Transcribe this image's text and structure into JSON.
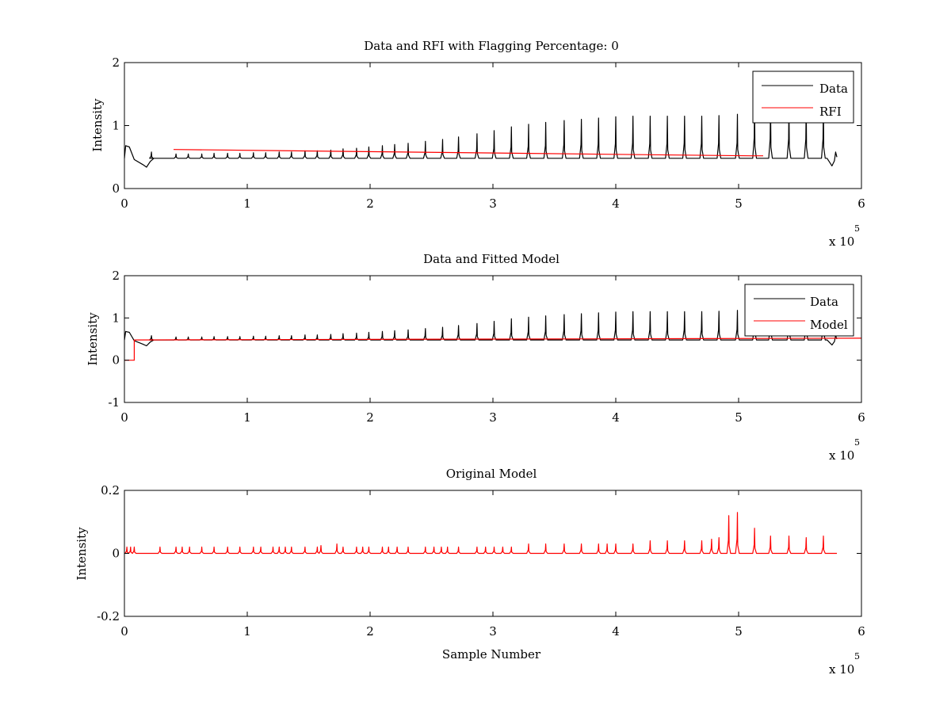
{
  "chart_data": [
    {
      "type": "line",
      "title": "Data and RFI with Flagging Percentage: 0",
      "xlabel": "",
      "ylabel": "Intensity",
      "xlim": [
        0,
        600000
      ],
      "ylim": [
        0,
        2
      ],
      "xticks": [
        0,
        1,
        2,
        3,
        4,
        5,
        6
      ],
      "yticks": [
        0,
        1,
        2
      ],
      "x_multiplier_label": "x 10",
      "x_multiplier_exponent": "5",
      "legend": "top-right",
      "series": [
        {
          "name": "Data",
          "color": "#000000",
          "baseline": 0.48,
          "spikes_x": [
            22000,
            42000,
            52000,
            63000,
            73000,
            84000,
            94000,
            105000,
            115000,
            126000,
            136000,
            147000,
            157000,
            168000,
            178000,
            189000,
            199000,
            210000,
            220000,
            231000,
            245000,
            259000,
            272000,
            287000,
            301000,
            315000,
            329000,
            343000,
            358000,
            372000,
            386000,
            400000,
            414000,
            428000,
            442000,
            456000,
            470000,
            484000,
            499000,
            513000,
            526000,
            541000,
            555000,
            569000
          ],
          "spikes_y": [
            0.58,
            0.55,
            0.55,
            0.55,
            0.56,
            0.56,
            0.56,
            0.57,
            0.57,
            0.58,
            0.58,
            0.6,
            0.6,
            0.61,
            0.63,
            0.64,
            0.66,
            0.68,
            0.7,
            0.72,
            0.75,
            0.78,
            0.82,
            0.87,
            0.92,
            0.98,
            1.02,
            1.05,
            1.08,
            1.1,
            1.12,
            1.14,
            1.15,
            1.15,
            1.15,
            1.15,
            1.15,
            1.16,
            1.18,
            1.42,
            1.35,
            1.35,
            1.35,
            1.36
          ]
        },
        {
          "name": "RFI",
          "color": "#ff0000",
          "points": [
            [
              40000,
              0.62
            ],
            [
              510000,
              0.52
            ],
            [
              520000,
              0.52
            ]
          ]
        }
      ]
    },
    {
      "type": "line",
      "title": "Data and Fitted Model",
      "xlabel": "",
      "ylabel": "Intensity",
      "xlim": [
        0,
        600000
      ],
      "ylim": [
        -1,
        2
      ],
      "xticks": [
        0,
        1,
        2,
        3,
        4,
        5,
        6
      ],
      "yticks": [
        -1,
        0,
        1,
        2
      ],
      "x_multiplier_label": "x 10",
      "x_multiplier_exponent": "5",
      "legend": "top-right",
      "series": [
        {
          "name": "Data",
          "color": "#000000",
          "baseline": 0.48,
          "spikes_x": [
            22000,
            42000,
            52000,
            63000,
            73000,
            84000,
            94000,
            105000,
            115000,
            126000,
            136000,
            147000,
            157000,
            168000,
            178000,
            189000,
            199000,
            210000,
            220000,
            231000,
            245000,
            259000,
            272000,
            287000,
            301000,
            315000,
            329000,
            343000,
            358000,
            372000,
            386000,
            400000,
            414000,
            428000,
            442000,
            456000,
            470000,
            484000,
            499000,
            513000,
            526000,
            541000,
            555000,
            569000
          ],
          "spikes_y": [
            0.58,
            0.55,
            0.55,
            0.55,
            0.56,
            0.56,
            0.56,
            0.57,
            0.57,
            0.58,
            0.58,
            0.6,
            0.6,
            0.61,
            0.63,
            0.64,
            0.66,
            0.68,
            0.7,
            0.72,
            0.75,
            0.78,
            0.82,
            0.87,
            0.92,
            0.98,
            1.02,
            1.05,
            1.08,
            1.1,
            1.12,
            1.14,
            1.15,
            1.15,
            1.15,
            1.15,
            1.15,
            1.16,
            1.18,
            1.32,
            1.25,
            1.25,
            1.25,
            1.26
          ]
        },
        {
          "name": "Model",
          "color": "#ff0000",
          "points": [
            [
              0,
              0.0
            ],
            [
              8000,
              0.0
            ],
            [
              8000,
              0.48
            ],
            [
              300000,
              0.5
            ],
            [
              600000,
              0.52
            ]
          ]
        }
      ]
    },
    {
      "type": "line",
      "title": "Original Model",
      "xlabel": "Sample Number",
      "ylabel": "Intensity",
      "xlim": [
        0,
        600000
      ],
      "ylim": [
        -0.2,
        0.2
      ],
      "xticks": [
        0,
        1,
        2,
        3,
        4,
        5,
        6
      ],
      "yticks": [
        "-0.2",
        "0",
        "0.2"
      ],
      "x_multiplier_label": "x 10",
      "x_multiplier_exponent": "5",
      "series": [
        {
          "color": "#ff0000",
          "baseline": 0.0,
          "spikes_x": [
            2000,
            5000,
            8000,
            29000,
            42000,
            47000,
            53000,
            63000,
            73000,
            84000,
            94000,
            105000,
            111000,
            121000,
            126000,
            131000,
            136000,
            147000,
            157000,
            160000,
            173000,
            178000,
            189000,
            194000,
            199000,
            210000,
            215000,
            222000,
            231000,
            245000,
            252000,
            258000,
            263000,
            272000,
            287000,
            294000,
            301000,
            308000,
            315000,
            329000,
            343000,
            358000,
            372000,
            386000,
            393000,
            400000,
            414000,
            428000,
            442000,
            456000,
            470000,
            478000,
            484000,
            492000,
            499000,
            513000,
            526000,
            541000,
            555000,
            569000
          ],
          "spikes_y": [
            0.02,
            0.02,
            0.02,
            0.02,
            0.02,
            0.02,
            0.02,
            0.02,
            0.02,
            0.02,
            0.02,
            0.02,
            0.02,
            0.02,
            0.02,
            0.02,
            0.02,
            0.02,
            0.02,
            0.025,
            0.03,
            0.02,
            0.02,
            0.02,
            0.02,
            0.02,
            0.02,
            0.02,
            0.02,
            0.02,
            0.02,
            0.02,
            0.02,
            0.02,
            0.02,
            0.02,
            0.02,
            0.02,
            0.02,
            0.03,
            0.03,
            0.03,
            0.03,
            0.03,
            0.03,
            0.03,
            0.03,
            0.04,
            0.04,
            0.04,
            0.04,
            0.045,
            0.05,
            0.12,
            0.13,
            0.08,
            0.055,
            0.055,
            0.05,
            0.055
          ]
        }
      ]
    }
  ]
}
